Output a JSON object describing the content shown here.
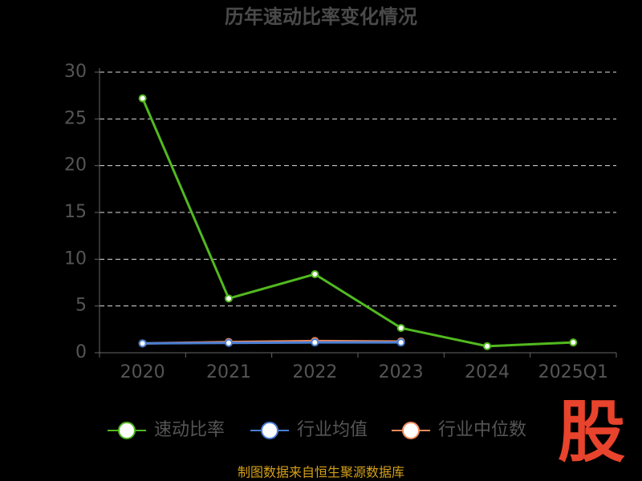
{
  "chart_data": {
    "type": "line",
    "title": "历年速动比率变化情况",
    "categories": [
      "2020",
      "2021",
      "2022",
      "2023",
      "2024",
      "2025Q1"
    ],
    "series": [
      {
        "name": "速动比率",
        "color": "#52b91f",
        "values": [
          27.2,
          5.8,
          8.4,
          2.65,
          0.7,
          1.1
        ]
      },
      {
        "name": "行业均值",
        "color": "#4a7fd4",
        "values": [
          1.0,
          1.05,
          1.1,
          1.1,
          null,
          null
        ]
      },
      {
        "name": "行业中位数",
        "color": "#f08a5d",
        "values": [
          1.0,
          1.15,
          1.25,
          1.2,
          null,
          null
        ]
      }
    ],
    "ylim": [
      0,
      30
    ],
    "yticks": [
      0,
      5,
      10,
      15,
      20,
      25,
      30
    ],
    "grid": true,
    "legend": "bottom",
    "source": "制图数据来自恒生聚源数据库",
    "logo": "股"
  }
}
